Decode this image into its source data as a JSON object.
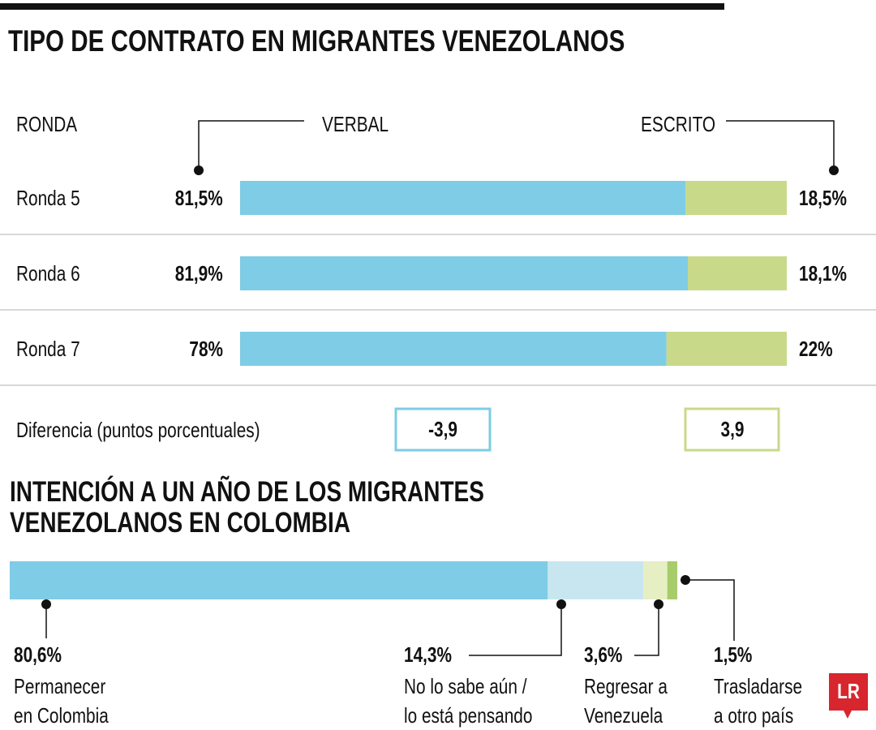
{
  "chart_data": [
    {
      "type": "stacked-bar-horizontal",
      "title": "TIPO DE CONTRATO EN MIGRANTES VENEZOLANOS",
      "category_header": "RONDA",
      "categories": [
        "Ronda 5",
        "Ronda 6",
        "Ronda 7"
      ],
      "series": [
        {
          "name": "VERBAL",
          "color": "#7ecce5",
          "values": [
            81.5,
            81.9,
            78
          ],
          "value_labels": [
            "81,5%",
            "81,9%",
            "78%"
          ]
        },
        {
          "name": "ESCRITO",
          "color": "#c8d98a",
          "values": [
            18.5,
            18.1,
            22
          ],
          "value_labels": [
            "18,5%",
            "18,1%",
            "22%"
          ]
        }
      ],
      "xlim": [
        0,
        100
      ],
      "difference": {
        "label": "Diferencia (puntos porcentuales)",
        "values": [
          -3.9,
          3.9
        ],
        "value_labels": [
          "-3,9",
          "3,9"
        ]
      }
    },
    {
      "type": "stacked-bar-single",
      "title": "INTENCIÓN A UN AÑO DE LOS MIGRANTES VENEZOLANOS EN COLOMBIA",
      "series": [
        {
          "name": "Permanecer en Colombia",
          "color": "#7ecce5",
          "values": [
            80.6
          ],
          "value_labels": [
            "80,6%"
          ]
        },
        {
          "name": "No lo sabe aún / lo está pensando",
          "color": "#c8e6f0",
          "values": [
            14.3
          ],
          "value_labels": [
            "14,3%"
          ]
        },
        {
          "name": "Regresar a Venezuela",
          "color": "#e6efc4",
          "values": [
            3.6
          ],
          "value_labels": [
            "3,6%"
          ]
        },
        {
          "name": "Trasladarse a otro país",
          "color": "#a8cc6a",
          "values": [
            1.5
          ],
          "value_labels": [
            "1,5%"
          ]
        }
      ],
      "xlim": [
        0,
        100
      ],
      "brand": "LR"
    }
  ]
}
